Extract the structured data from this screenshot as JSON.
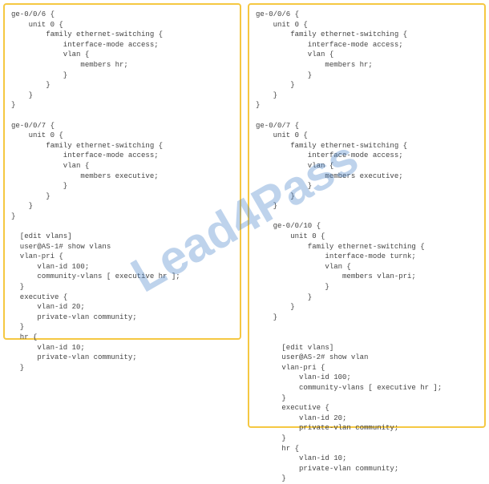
{
  "watermark": {
    "text": "Lead4Pass",
    "color": "rgba(70,130,200,0.35)",
    "fontsize": 60
  },
  "left": {
    "lines": [
      "ge-0/0/6 {",
      "    unit 0 {",
      "        family ethernet-switching {",
      "            interface-mode access;",
      "            vlan {",
      "                members hr;",
      "            }",
      "        }",
      "    }",
      "}",
      "",
      "ge-0/0/7 {",
      "    unit 0 {",
      "        family ethernet-switching {",
      "            interface-mode access;",
      "            vlan {",
      "                members executive;",
      "            }",
      "        }",
      "    }",
      "}",
      "",
      "  [edit vlans]",
      "  user@AS-1# show vlans",
      "  vlan-pri {",
      "      vlan-id 100;",
      "      community-vlans [ executive hr ];",
      "  }",
      "  executive {",
      "      vlan-id 20;",
      "      private-vlan community;",
      "  }",
      "  hr {",
      "      vlan-id 10;",
      "      private-vlan community;",
      "  }"
    ]
  },
  "right": {
    "lines": [
      "ge-0/0/6 {",
      "    unit 0 {",
      "        family ethernet-switching {",
      "            interface-mode access;",
      "            vlan {",
      "                members hr;",
      "            }",
      "        }",
      "    }",
      "}",
      "",
      "ge-0/0/7 {",
      "    unit 0 {",
      "        family ethernet-switching {",
      "            interface-mode access;",
      "            vlan {",
      "                members executive;",
      "            }",
      "        }",
      "    }",
      "",
      "    ge-0/0/10 {",
      "        unit 0 {",
      "            family ethernet-switching {",
      "                interface-mode turnk;",
      "                vlan {",
      "                    members vlan-pri;",
      "                }",
      "            }",
      "        }",
      "    }",
      "",
      "",
      "      [edit vlans]",
      "      user@AS-2# show vlan",
      "      vlan-pri {",
      "          vlan-id 100;",
      "          community-vlans [ executive hr ];",
      "      }",
      "      executive {",
      "          vlan-id 20;",
      "          private-vlan community;",
      "      }",
      "      hr {",
      "          vlan-id 10;",
      "          private-vlan community;",
      "      }"
    ]
  },
  "border_color": "#f5c842",
  "text_color": "#444444",
  "background_color": "#ffffff"
}
